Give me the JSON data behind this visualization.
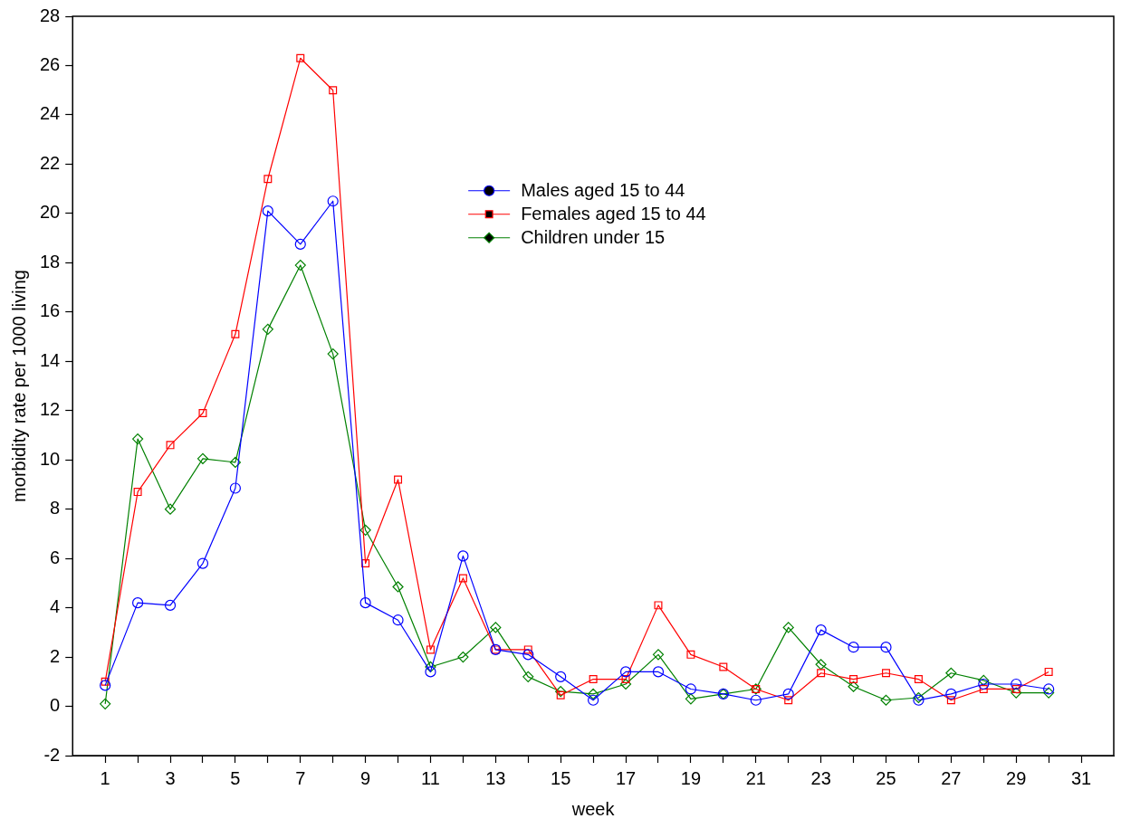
{
  "chart_data": {
    "type": "line",
    "xlabel": "week",
    "ylabel": "morbidity rate per 1000 living",
    "x": [
      1,
      2,
      3,
      4,
      5,
      6,
      7,
      8,
      9,
      10,
      11,
      12,
      13,
      14,
      15,
      16,
      17,
      18,
      19,
      20,
      21,
      22,
      23,
      24,
      25,
      26,
      27,
      28,
      29,
      30
    ],
    "series": [
      {
        "name": "Males aged 15 to 44",
        "color": "#0000ff",
        "marker": "circle",
        "values": [
          0.85,
          4.2,
          4.1,
          5.8,
          8.85,
          20.1,
          18.75,
          20.5,
          4.2,
          3.5,
          1.4,
          6.1,
          2.3,
          2.1,
          1.2,
          0.25,
          1.4,
          1.4,
          0.7,
          0.5,
          0.25,
          0.5,
          3.1,
          2.4,
          2.4,
          0.25,
          0.5,
          0.9,
          0.9,
          0.7
        ]
      },
      {
        "name": "Females aged 15 to 44",
        "color": "#ff0000",
        "marker": "square",
        "values": [
          1.0,
          8.7,
          10.6,
          11.9,
          15.1,
          21.4,
          26.3,
          25.0,
          5.8,
          9.2,
          2.3,
          5.2,
          2.3,
          2.3,
          0.45,
          1.1,
          1.1,
          4.1,
          2.1,
          1.6,
          0.7,
          0.25,
          1.35,
          1.1,
          1.35,
          1.1,
          0.25,
          0.7,
          0.7,
          1.4
        ]
      },
      {
        "name": "Children under 15",
        "color": "#008000",
        "marker": "diamond",
        "values": [
          0.1,
          10.85,
          8.0,
          10.05,
          9.9,
          15.3,
          17.9,
          14.3,
          7.15,
          4.85,
          1.6,
          2.0,
          3.2,
          1.2,
          0.6,
          0.5,
          0.9,
          2.1,
          0.3,
          0.5,
          0.7,
          3.2,
          1.7,
          0.8,
          0.25,
          0.35,
          1.35,
          1.05,
          0.55,
          0.55
        ]
      }
    ],
    "xlim": [
      0,
      32
    ],
    "xticks": [
      1,
      {
        "value": 2,
        "label": null
      },
      3,
      {
        "value": 4,
        "label": null
      },
      5,
      {
        "value": 6,
        "label": null
      },
      7,
      {
        "value": 8,
        "label": null
      },
      9,
      {
        "value": 10,
        "label": null
      },
      11,
      {
        "value": 12,
        "label": null
      },
      13,
      {
        "value": 14,
        "label": null
      },
      15,
      {
        "value": 16,
        "label": null
      },
      17,
      {
        "value": 18,
        "label": null
      },
      19,
      {
        "value": 20,
        "label": null
      },
      21,
      {
        "value": 22,
        "label": null
      },
      23,
      {
        "value": 24,
        "label": null
      },
      25,
      {
        "value": 26,
        "label": null
      },
      27,
      {
        "value": 28,
        "label": null
      },
      29,
      {
        "value": 30,
        "label": null
      },
      31
    ],
    "ylim": [
      -2,
      28
    ],
    "yticks": [
      -2,
      0,
      2,
      4,
      6,
      8,
      10,
      12,
      14,
      16,
      18,
      20,
      22,
      24,
      26,
      28
    ],
    "grid": false,
    "legend": "top right",
    "line_style": "solid"
  }
}
